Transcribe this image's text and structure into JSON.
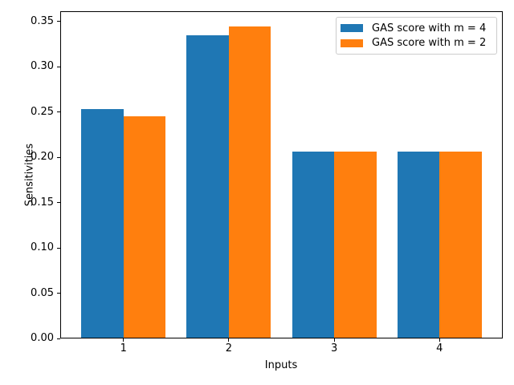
{
  "chart_data": {
    "type": "bar",
    "title": "",
    "xlabel": "Inputs",
    "ylabel": "Sensitivities",
    "categories": [
      "1",
      "2",
      "3",
      "4"
    ],
    "series": [
      {
        "name": "GAS score with m = 4",
        "color": "#1f77b4",
        "values": [
          0.253,
          0.335,
          0.206,
          0.206
        ]
      },
      {
        "name": "GAS score with m = 2",
        "color": "#ff7f0e",
        "values": [
          0.245,
          0.344,
          0.206,
          0.206
        ]
      }
    ],
    "yticks": [
      0.0,
      0.05,
      0.1,
      0.15,
      0.2,
      0.25,
      0.3,
      0.35
    ],
    "ylim": [
      0,
      0.3612
    ],
    "xlim": [
      0.4,
      4.6
    ],
    "bar_width": 0.4,
    "grid": false,
    "legend_position": "upper right",
    "axis_color": "#000000",
    "legend_border_color": "#cccccc"
  }
}
